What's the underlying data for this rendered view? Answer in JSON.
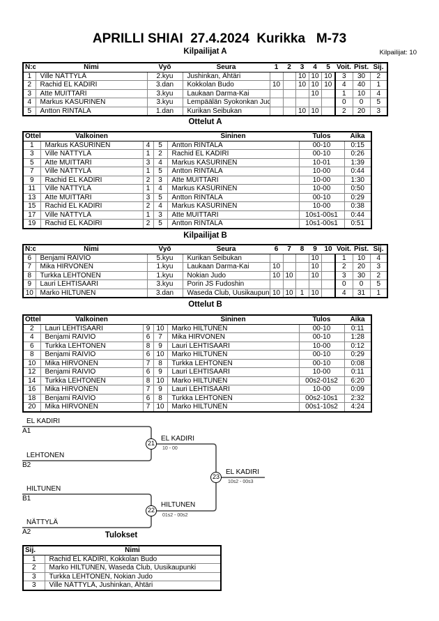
{
  "title": "APRILLI SHIAI  27.4.2024  Kurikka   M-73",
  "competitor_count": "Kilpailijat: 10",
  "pool_a": {
    "title": "Kilpailijat A",
    "headers": [
      "N:o",
      "Nimi",
      "Vyö",
      "Seura",
      "1",
      "2",
      "3",
      "4",
      "5",
      "Voit.",
      "Pist.",
      "Sij."
    ],
    "rows": [
      [
        "1",
        "Ville NÄTTYLÄ",
        "2.kyu",
        "Jushinkan, Ähtäri",
        "",
        "",
        "10",
        "10",
        "10",
        "3",
        "30",
        "2"
      ],
      [
        "2",
        "Rachid EL KADIRI",
        "3.dan",
        "Kokkolan Budo",
        "10",
        "",
        "10",
        "10",
        "10",
        "4",
        "40",
        "1"
      ],
      [
        "3",
        "Atte MUITTARI",
        "3.kyu",
        "Laukaan Darma-Kai",
        "",
        "",
        "",
        "10",
        "",
        "1",
        "10",
        "4"
      ],
      [
        "4",
        "Markus KASURINEN",
        "3.kyu",
        "Lempäälän Syokonkan Judo",
        "",
        "",
        "",
        "",
        "",
        "0",
        "0",
        "5"
      ],
      [
        "5",
        "Antton RINTALA",
        "1.dan",
        "Kurikan Seibukan",
        "",
        "",
        "10",
        "10",
        "",
        "2",
        "20",
        "3"
      ]
    ]
  },
  "matches_a": {
    "title": "Ottelut A",
    "headers": [
      "Ottelu",
      "Valkoinen",
      "",
      "",
      "Sininen",
      "Tulos",
      "Aika"
    ],
    "rows": [
      [
        "1",
        "Markus KASURINEN",
        "4",
        "5",
        "Antton RINTALA",
        "00-10",
        "0:15"
      ],
      [
        "3",
        "Ville NÄTTYLÄ",
        "1",
        "2",
        "Rachid EL KADIRI",
        "00-10",
        "0:26"
      ],
      [
        "5",
        "Atte MUITTARI",
        "3",
        "4",
        "Markus KASURINEN",
        "10-01",
        "1:39"
      ],
      [
        "7",
        "Ville NÄTTYLÄ",
        "1",
        "5",
        "Antton RINTALA",
        "10-00",
        "0:44"
      ],
      [
        "9",
        "Rachid EL KADIRI",
        "2",
        "3",
        "Atte MUITTARI",
        "10-00",
        "1:30"
      ],
      [
        "11",
        "Ville NÄTTYLÄ",
        "1",
        "4",
        "Markus KASURINEN",
        "10-00",
        "0:50"
      ],
      [
        "13",
        "Atte MUITTARI",
        "3",
        "5",
        "Antton RINTALA",
        "00-10",
        "0:29"
      ],
      [
        "15",
        "Rachid EL KADIRI",
        "2",
        "4",
        "Markus KASURINEN",
        "10-00",
        "0:38"
      ],
      [
        "17",
        "Ville NÄTTYLÄ",
        "1",
        "3",
        "Atte MUITTARI",
        "10s1-00s1",
        "0:44"
      ],
      [
        "19",
        "Rachid EL KADIRI",
        "2",
        "5",
        "Antton RINTALA",
        "10s1-00s1",
        "0:51"
      ]
    ]
  },
  "pool_b": {
    "title": "Kilpailijat B",
    "headers": [
      "N:o",
      "Nimi",
      "Vyö",
      "Seura",
      "6",
      "7",
      "8",
      "9",
      "10",
      "Voit.",
      "Pist.",
      "Sij."
    ],
    "rows": [
      [
        "6",
        "Benjami RAIVIO",
        "5.kyu",
        "Kurikan Seibukan",
        "",
        "",
        "",
        "10",
        "",
        "1",
        "10",
        "4"
      ],
      [
        "7",
        "Mika HIRVONEN",
        "1.kyu",
        "Laukaan Darma-Kai",
        "10",
        "",
        "",
        "10",
        "",
        "2",
        "20",
        "3"
      ],
      [
        "8",
        "Turkka LEHTONEN",
        "1.kyu",
        "Nokian Judo",
        "10",
        "10",
        "",
        "10",
        "",
        "3",
        "30",
        "2"
      ],
      [
        "9",
        "Lauri LEHTISAARI",
        "3.kyu",
        "Porin JS Fudoshin",
        "",
        "",
        "",
        "",
        "",
        "0",
        "0",
        "5"
      ],
      [
        "10",
        "Marko HILTUNEN",
        "3.dan",
        "Waseda Club, Uusikaupunki",
        "10",
        "10",
        "1",
        "10",
        "",
        "4",
        "31",
        "1"
      ]
    ]
  },
  "matches_b": {
    "title": "Ottelut B",
    "headers": [
      "Ottelu",
      "Valkoinen",
      "",
      "",
      "Sininen",
      "Tulos",
      "Aika"
    ],
    "rows": [
      [
        "2",
        "Lauri LEHTISAARI",
        "9",
        "10",
        "Marko HILTUNEN",
        "00-10",
        "0:11"
      ],
      [
        "4",
        "Benjami RAIVIO",
        "6",
        "7",
        "Mika HIRVONEN",
        "00-10",
        "1:28"
      ],
      [
        "6",
        "Turkka LEHTONEN",
        "8",
        "9",
        "Lauri LEHTISAARI",
        "10-00",
        "0:12"
      ],
      [
        "8",
        "Benjami RAIVIO",
        "6",
        "10",
        "Marko HILTUNEN",
        "00-10",
        "0:29"
      ],
      [
        "10",
        "Mika HIRVONEN",
        "7",
        "8",
        "Turkka LEHTONEN",
        "00-10",
        "0:08"
      ],
      [
        "12",
        "Benjami RAIVIO",
        "6",
        "9",
        "Lauri LEHTISAARI",
        "10-00",
        "0:11"
      ],
      [
        "14",
        "Turkka LEHTONEN",
        "8",
        "10",
        "Marko HILTUNEN",
        "00s2-01s2",
        "6:20"
      ],
      [
        "16",
        "Mika HIRVONEN",
        "7",
        "9",
        "Lauri LEHTISAARI",
        "10-00",
        "0:09"
      ],
      [
        "18",
        "Benjami RAIVIO",
        "6",
        "8",
        "Turkka LEHTONEN",
        "00s2-10s1",
        "2:32"
      ],
      [
        "20",
        "Mika HIRVONEN",
        "7",
        "10",
        "Marko HILTUNEN",
        "00s1-10s2",
        "4:24"
      ]
    ]
  },
  "bracket": {
    "entries": [
      {
        "name": "EL KADIRI",
        "seed": "A1"
      },
      {
        "name": "LEHTONEN",
        "seed": "B2"
      },
      {
        "name": "HILTUNEN",
        "seed": "B1"
      },
      {
        "name": "NÄTTYLÄ",
        "seed": "A2"
      }
    ],
    "matches": [
      {
        "number": "21",
        "winner": "EL KADIRI",
        "score": "10 - 00"
      },
      {
        "number": "22",
        "winner": "HILTUNEN",
        "score": "01s2 - 00s2"
      },
      {
        "number": "23",
        "winner": "EL KADIRI",
        "score": "10s2 - 00s3"
      }
    ]
  },
  "results": {
    "title": "Tulokset",
    "headers": [
      "Sij.",
      "Nimi"
    ],
    "rows": [
      [
        "1",
        "Rachid EL KADIRI, Kokkolan Budo"
      ],
      [
        "2",
        "Marko HILTUNEN, Waseda Club, Uusikaupunki"
      ],
      [
        "3",
        "Turkka LEHTONEN, Nokian Judo"
      ],
      [
        "3",
        "Ville NÄTTYLÄ, Jushinkan, Ähtäri"
      ]
    ]
  }
}
